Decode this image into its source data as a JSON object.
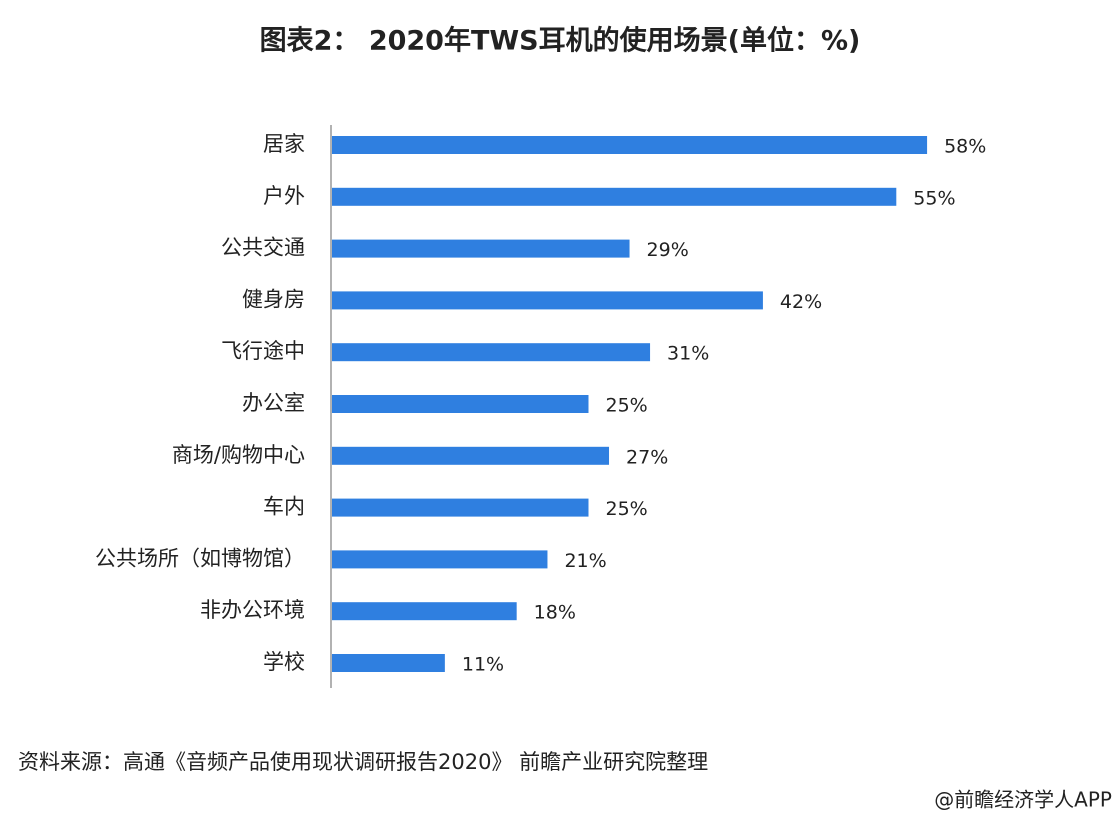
{
  "chart_data": {
    "type": "bar",
    "orientation": "horizontal",
    "title": "图表2： 2020年TWS耳机的使用场景(单位：%)",
    "categories": [
      "居家",
      "户外",
      "公共交通",
      "健身房",
      "飞行途中",
      "办公室",
      "商场/购物中心",
      "车内",
      "公共场所（如博物馆）",
      "非办公环境",
      "学校"
    ],
    "values": [
      58,
      55,
      29,
      42,
      31,
      25,
      27,
      25,
      21,
      18,
      11
    ],
    "value_labels": [
      "58%",
      "55%",
      "29%",
      "42%",
      "31%",
      "25%",
      "27%",
      "25%",
      "21%",
      "18%",
      "11%"
    ],
    "color": "#2f7fe0",
    "source": "资料来源：高通《音频产品使用现状调研报告2020》 前瞻产业研究院整理",
    "credit": "@前瞻经济学人APP"
  }
}
